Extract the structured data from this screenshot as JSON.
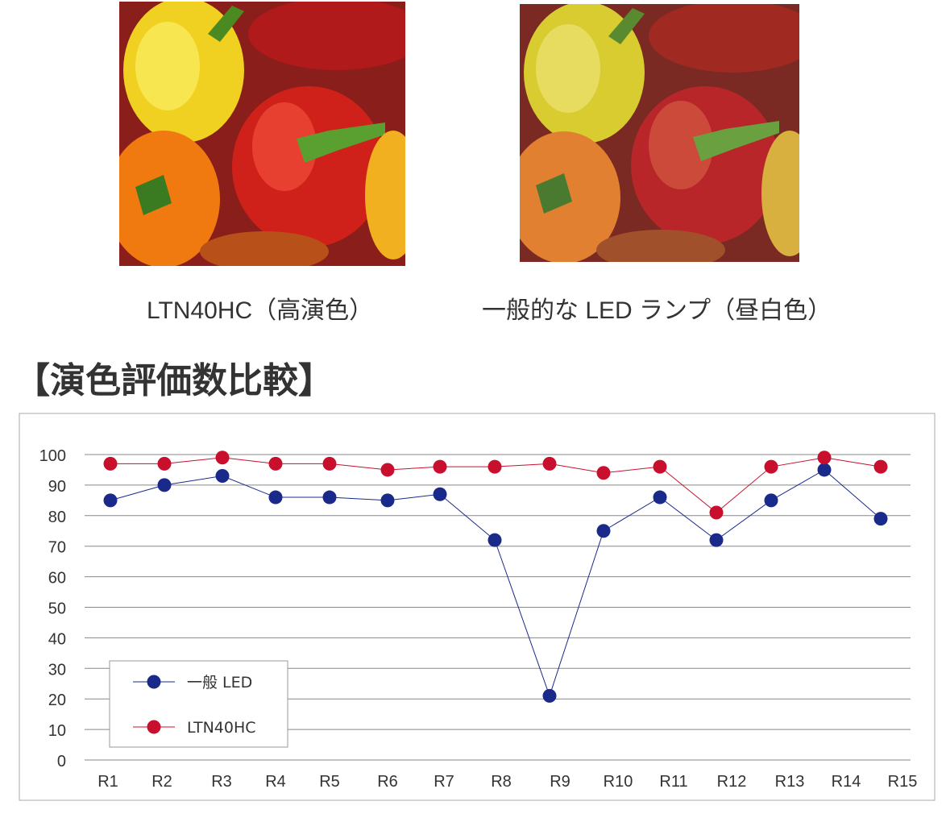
{
  "photos": [
    {
      "caption": "LTN40HC（高演色）"
    },
    {
      "caption": "一般的な LED ランプ（昼白色）"
    }
  ],
  "section_title": "【演色評価数比較】",
  "colors": {
    "led": "#1a2a8a",
    "ltn": "#c8102e",
    "grid": "#888888"
  },
  "chart_data": {
    "type": "line",
    "title": "演色評価数比較",
    "xlabel": "",
    "ylabel": "",
    "categories": [
      "R1",
      "R2",
      "R3",
      "R4",
      "R5",
      "R6",
      "R7",
      "R8",
      "R9",
      "R10",
      "R11",
      "R12",
      "R13",
      "R14",
      "R15"
    ],
    "yticks": [
      0,
      10,
      20,
      30,
      40,
      50,
      60,
      70,
      80,
      90,
      100
    ],
    "ylim": [
      0,
      100
    ],
    "grid": true,
    "legend_position": "bottom-left",
    "series": [
      {
        "name": "一般 LED",
        "values": [
          85,
          90,
          93,
          86,
          86,
          85,
          87,
          72,
          21,
          75,
          86,
          72,
          85,
          95,
          79
        ]
      },
      {
        "name": "LTN40HC",
        "values": [
          97,
          97,
          99,
          97,
          97,
          95,
          96,
          96,
          97,
          94,
          96,
          81,
          96,
          99,
          96
        ]
      }
    ]
  }
}
